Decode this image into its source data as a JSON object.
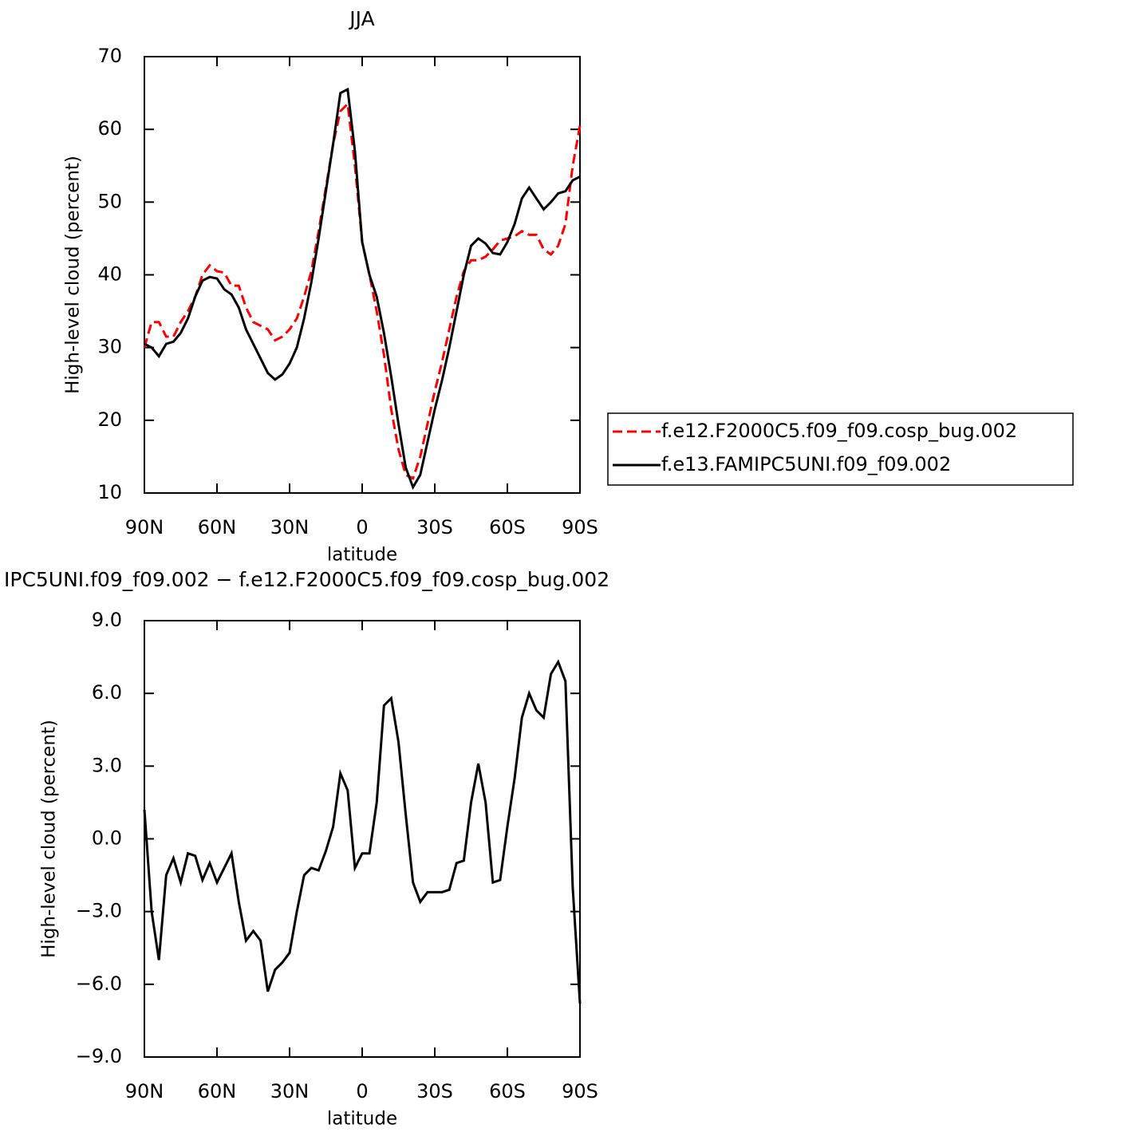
{
  "chart_data": [
    {
      "type": "line",
      "title": "JJA",
      "x_label": "latitude",
      "y_label": "High-level cloud (percent)",
      "x": [
        90,
        87,
        84,
        81,
        78,
        75,
        72,
        69,
        66,
        63,
        60,
        57,
        54,
        51,
        48,
        45,
        42,
        39,
        36,
        33,
        30,
        27,
        24,
        21,
        18,
        15,
        12,
        9,
        6,
        3,
        0,
        -3,
        -6,
        -9,
        -12,
        -15,
        -18,
        -21,
        -24,
        -27,
        -30,
        -33,
        -36,
        -39,
        -42,
        -45,
        -48,
        -51,
        -54,
        -57,
        -60,
        -63,
        -66,
        -69,
        -72,
        -75,
        -78,
        -81,
        -84,
        -87,
        -90
      ],
      "series": [
        {
          "name": "f.e12.F2000C5.f09_f09.cosp_bug.002",
          "color": "#ff0000",
          "dash": true,
          "values": [
            30,
            33.5,
            33.5,
            31.5,
            31.5,
            33.5,
            35,
            37,
            40,
            41.3,
            40.5,
            40.3,
            38.5,
            38.5,
            35.5,
            33.5,
            33,
            32.5,
            31,
            31.5,
            32.5,
            34,
            37,
            40.5,
            46,
            52,
            58,
            62.5,
            63.5,
            55,
            44.5,
            40,
            35,
            29,
            21.5,
            16,
            12.5,
            12,
            15,
            19.5,
            24,
            28,
            32.5,
            37,
            40.5,
            42,
            42,
            42.5,
            43.5,
            44.7,
            45,
            45.3,
            46,
            45.5,
            45.5,
            43.5,
            42.8,
            44,
            47,
            55,
            60.5
          ]
        },
        {
          "name": "f.e13.FAMIPC5UNI.f09_f09.002",
          "color": "#000000",
          "dash": false,
          "values": [
            30.5,
            30,
            28.8,
            30.5,
            30.8,
            32,
            34,
            37,
            39.2,
            39.7,
            39.5,
            38,
            37.3,
            35.5,
            32.5,
            30.5,
            28.5,
            26.5,
            25.6,
            26.3,
            27.8,
            30,
            34,
            39,
            45,
            51.5,
            58,
            65,
            65.5,
            57,
            44.5,
            40,
            37,
            32,
            26,
            19.5,
            13.5,
            10.8,
            12.5,
            17,
            21.5,
            25.5,
            30,
            35,
            40,
            44,
            45,
            44.3,
            43,
            42.8,
            44.5,
            47,
            50.5,
            52,
            50.5,
            49,
            50,
            51.2,
            51.5,
            53,
            53.5
          ]
        }
      ],
      "xlim": [
        90,
        -90
      ],
      "xticks": [
        {
          "value": 90,
          "label": "90N"
        },
        {
          "value": 60,
          "label": "60N"
        },
        {
          "value": 30,
          "label": "30N"
        },
        0,
        {
          "value": -30,
          "label": "30S"
        },
        {
          "value": -60,
          "label": "60S"
        },
        {
          "value": -90,
          "label": "90S"
        }
      ],
      "ylim": [
        10,
        70
      ],
      "yticks": [
        10,
        20,
        30,
        40,
        50,
        60,
        70
      ],
      "legend": "right"
    },
    {
      "type": "line",
      "title": "IPC5UNI.f09_f09.002 − f.e12.F2000C5.f09_f09.cosp_bug.002",
      "x_label": "latitude",
      "y_label": "High-level cloud (percent)",
      "x": [
        90,
        87,
        84,
        81,
        78,
        75,
        72,
        69,
        66,
        63,
        60,
        57,
        54,
        51,
        48,
        45,
        42,
        39,
        36,
        33,
        30,
        27,
        24,
        21,
        18,
        15,
        12,
        9,
        6,
        3,
        0,
        -3,
        -6,
        -9,
        -12,
        -15,
        -18,
        -21,
        -24,
        -27,
        -30,
        -33,
        -36,
        -39,
        -42,
        -45,
        -48,
        -51,
        -54,
        -57,
        -60,
        -63,
        -66,
        -69,
        -72,
        -75,
        -78,
        -81,
        -84,
        -87,
        -90
      ],
      "color": "#000000",
      "values": [
        1.2,
        -3,
        -5,
        -1.5,
        -0.8,
        -1.8,
        -0.6,
        -0.7,
        -1.7,
        -1,
        -1.8,
        -1.2,
        -0.6,
        -2.6,
        -4.2,
        -3.8,
        -4.2,
        -6.3,
        -5.4,
        -5.1,
        -4.7,
        -3,
        -1.5,
        -1.2,
        -1.3,
        -0.5,
        0.5,
        2.7,
        2,
        -1.2,
        -0.6,
        -0.6,
        1.5,
        5.5,
        5.8,
        4,
        1,
        -1.8,
        -2.6,
        -2.2,
        -2.2,
        -2.2,
        -2.1,
        -1,
        -0.9,
        1.5,
        3.1,
        1.5,
        -1.8,
        -1.7,
        0.5,
        2.5,
        5,
        6,
        5.3,
        5,
        6.8,
        7.3,
        6.5,
        -2,
        -6.8
      ],
      "xlim": [
        90,
        -90
      ],
      "xticks": [
        {
          "value": 90,
          "label": "90N"
        },
        {
          "value": 60,
          "label": "60N"
        },
        {
          "value": 30,
          "label": "30N"
        },
        0,
        {
          "value": -30,
          "label": "30S"
        },
        {
          "value": -60,
          "label": "60S"
        },
        {
          "value": -90,
          "label": "90S"
        }
      ],
      "ylim": [
        -9,
        9
      ],
      "yticks": [
        {
          "value": -9,
          "label": "−9.0"
        },
        {
          "value": -6,
          "label": "−6.0"
        },
        {
          "value": -3,
          "label": "−3.0"
        },
        {
          "value": 0,
          "label": "0.0"
        },
        {
          "value": 3,
          "label": "3.0"
        },
        {
          "value": 6,
          "label": "6.0"
        },
        {
          "value": 9,
          "label": "9.0"
        }
      ]
    }
  ]
}
